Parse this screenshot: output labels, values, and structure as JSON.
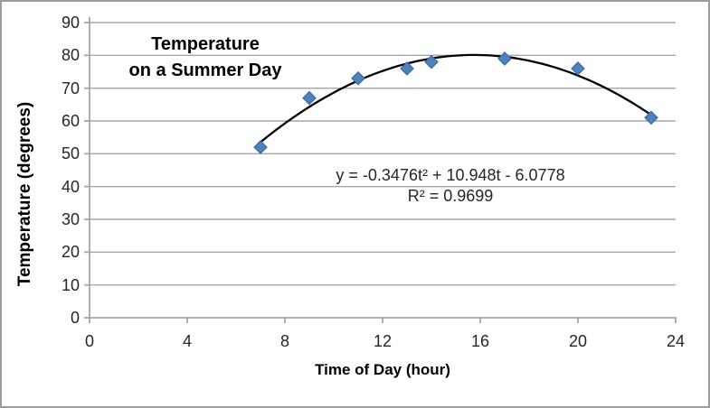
{
  "frame": {
    "border_color": "#9b9b9b",
    "background": "#ffffff"
  },
  "chart_data": {
    "type": "scatter",
    "title": "Temperature on a Summer Day",
    "title_lines": [
      "Temperature",
      "on a Summer Day"
    ],
    "xlabel": "Time of Day (hour)",
    "ylabel": "Temperature (degrees)",
    "xlim": [
      0,
      24
    ],
    "ylim": [
      0,
      90
    ],
    "x_ticks": [
      0,
      4,
      8,
      12,
      16,
      20,
      24
    ],
    "y_ticks": [
      0,
      10,
      20,
      30,
      40,
      50,
      60,
      70,
      80,
      90
    ],
    "grid": "horizontal gridlines on",
    "legend": "none",
    "points": [
      {
        "t": 7,
        "temp": 52
      },
      {
        "t": 9,
        "temp": 67
      },
      {
        "t": 11,
        "temp": 73
      },
      {
        "t": 13,
        "temp": 76
      },
      {
        "t": 14,
        "temp": 78
      },
      {
        "t": 17,
        "temp": 79
      },
      {
        "t": 20,
        "temp": 76
      },
      {
        "t": 23,
        "temp": 61
      }
    ],
    "trendline": {
      "type": "polynomial",
      "order": 2,
      "a": -0.3476,
      "b": 10.948,
      "c": -6.0778,
      "domain": [
        7,
        23
      ],
      "color": "#000000"
    },
    "equation_text": "y = -0.3476t² + 10.948t - 6.0778",
    "r_squared_text": "R² = 0.9699",
    "marker": {
      "shape": "diamond",
      "fill": "#4f81bd",
      "stroke": "#39699e"
    },
    "colors": {
      "gridline": "#a6a6a6",
      "axis": "#a6a6a6",
      "tick_text": "#262626",
      "title_text": "#000000"
    }
  }
}
